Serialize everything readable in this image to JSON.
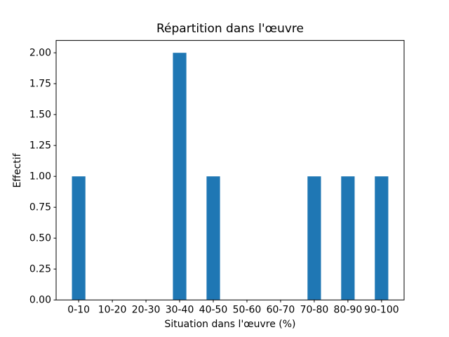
{
  "chart_data": {
    "type": "bar",
    "title": "Répartition dans l'œuvre",
    "xlabel": "Situation dans l'œuvre (%)",
    "ylabel": "Effectif",
    "categories": [
      "0-10",
      "10-20",
      "20-30",
      "30-40",
      "40-50",
      "50-60",
      "60-70",
      "70-80",
      "80-90",
      "90-100"
    ],
    "values": [
      1,
      0,
      0,
      2,
      1,
      0,
      0,
      1,
      1,
      1
    ],
    "yticks": {
      "values": [
        0,
        0.25,
        0.5,
        0.75,
        1.0,
        1.25,
        1.5,
        1.75,
        2.0
      ],
      "labels": [
        "0.00",
        "0.25",
        "0.50",
        "0.75",
        "1.00",
        "1.25",
        "1.50",
        "1.75",
        "2.00"
      ]
    },
    "ylim": [
      0,
      2.1
    ],
    "grid": false,
    "legend": null,
    "bar_color": "#1f77b4",
    "axis_color": "#000000",
    "background": "#ffffff"
  }
}
